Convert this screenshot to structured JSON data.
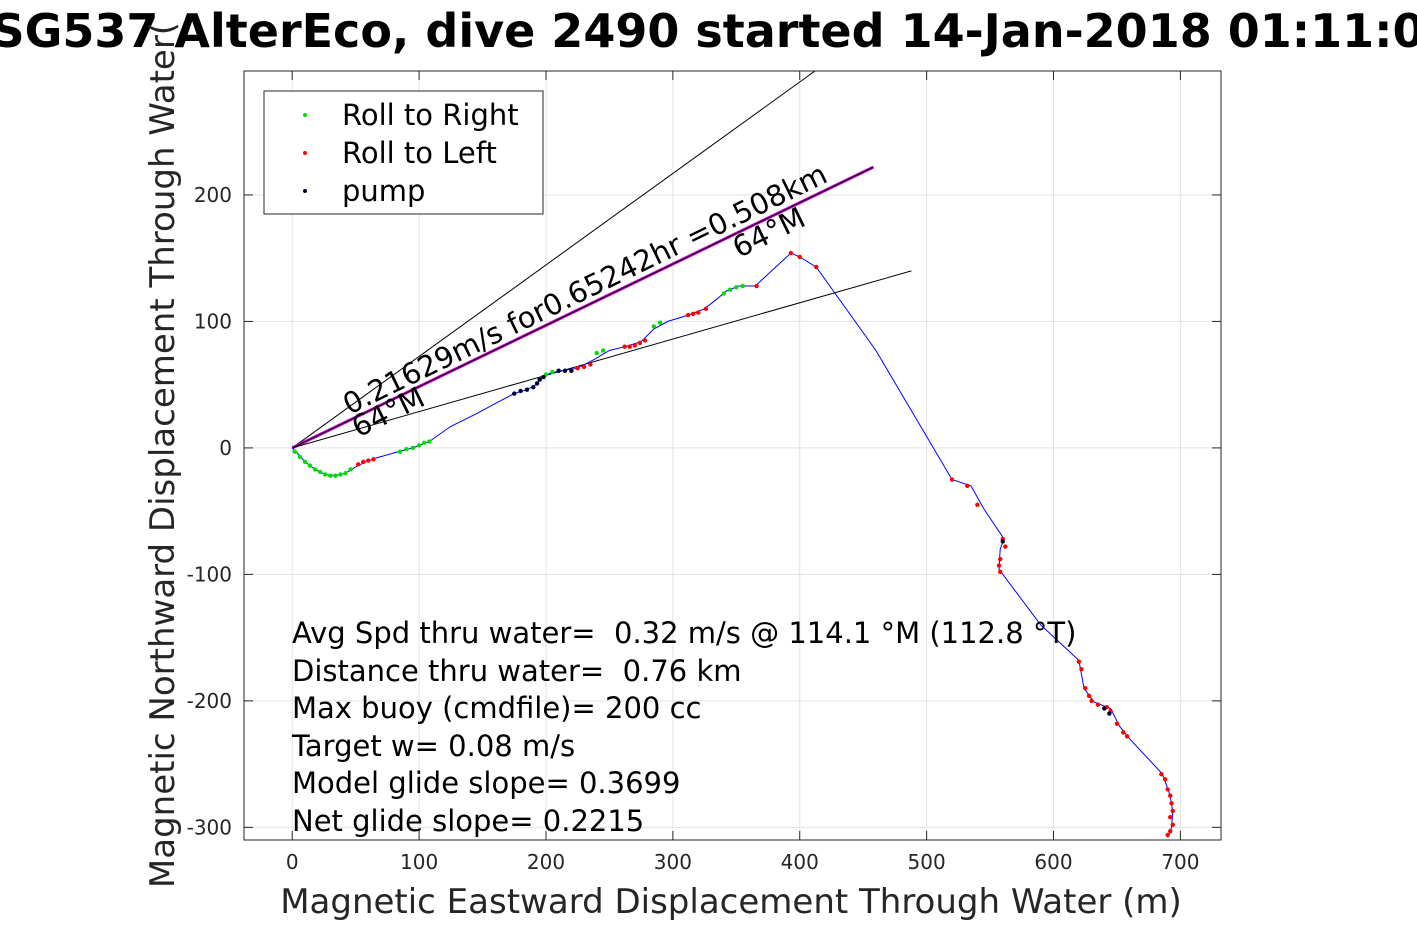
{
  "chart_data": {
    "type": "scatter",
    "title": "SG537 AlterEco, dive 2490 started 14-Jan-2018 01:11:0",
    "xlabel": "Magnetic Eastward Displacement Through Water (m)",
    "ylabel": "Magnetic Northward Displacement Through Water(",
    "xlim": [
      -38,
      732
    ],
    "ylim": [
      -310,
      298
    ],
    "x_ticks": [
      0,
      100,
      200,
      300,
      400,
      500,
      600,
      700
    ],
    "y_ticks": [
      -300,
      -200,
      -100,
      0,
      100,
      200
    ],
    "x_tick_labels": [
      "0",
      "100",
      "200",
      "300",
      "400",
      "500",
      "600",
      "700"
    ],
    "y_tick_labels": [
      "-300",
      "-200",
      "-100",
      "0",
      "100",
      "200"
    ],
    "grid": true,
    "legend_position": "top-left",
    "series": [
      {
        "name": "Roll to Right",
        "color": "#00dd00",
        "marker": "dot",
        "points": [
          [
            2,
            -3
          ],
          [
            6,
            -7
          ],
          [
            10,
            -11
          ],
          [
            14,
            -14
          ],
          [
            18,
            -17
          ],
          [
            22,
            -19
          ],
          [
            26,
            -21
          ],
          [
            30,
            -22
          ],
          [
            34,
            -22
          ],
          [
            38,
            -21
          ],
          [
            42,
            -20
          ],
          [
            46,
            -17
          ],
          [
            85,
            -3
          ],
          [
            90,
            -1
          ],
          [
            95,
            0
          ],
          [
            100,
            2
          ],
          [
            104,
            4
          ],
          [
            108,
            5
          ],
          [
            200,
            58
          ],
          [
            205,
            60
          ],
          [
            240,
            75
          ],
          [
            245,
            77
          ],
          [
            285,
            96
          ],
          [
            290,
            99
          ],
          [
            340,
            122
          ],
          [
            345,
            125
          ],
          [
            350,
            127
          ],
          [
            355,
            128
          ]
        ]
      },
      {
        "name": "Roll to Left",
        "color": "#ff0000",
        "marker": "dot",
        "points": [
          [
            52,
            -13
          ],
          [
            56,
            -11
          ],
          [
            60,
            -10
          ],
          [
            64,
            -9
          ],
          [
            225,
            63
          ],
          [
            230,
            64
          ],
          [
            235,
            66
          ],
          [
            262,
            80
          ],
          [
            266,
            80
          ],
          [
            270,
            81
          ],
          [
            274,
            83
          ],
          [
            278,
            85
          ],
          [
            312,
            105
          ],
          [
            316,
            106
          ],
          [
            320,
            107
          ],
          [
            326,
            110
          ],
          [
            366,
            128
          ],
          [
            393,
            154
          ],
          [
            400,
            151
          ],
          [
            413,
            143
          ],
          [
            520,
            -25
          ],
          [
            532,
            -30
          ],
          [
            540,
            -45
          ],
          [
            560,
            -72
          ],
          [
            562,
            -78
          ],
          [
            558,
            -88
          ],
          [
            557,
            -93
          ],
          [
            558,
            -98
          ],
          [
            620,
            -169
          ],
          [
            622,
            -175
          ],
          [
            625,
            -190
          ],
          [
            628,
            -196
          ],
          [
            630,
            -200
          ],
          [
            635,
            -203
          ],
          [
            642,
            -205
          ],
          [
            645,
            -208
          ],
          [
            650,
            -218
          ],
          [
            655,
            -225
          ],
          [
            658,
            -228
          ],
          [
            685,
            -258
          ],
          [
            688,
            -262
          ],
          [
            690,
            -270
          ],
          [
            692,
            -275
          ],
          [
            693,
            -281
          ],
          [
            694,
            -287
          ],
          [
            692,
            -292
          ],
          [
            694,
            -298
          ],
          [
            692,
            -303
          ],
          [
            690,
            -306
          ]
        ]
      },
      {
        "name": "pump",
        "color": "#000033",
        "marker": "dot",
        "points": [
          [
            175,
            43
          ],
          [
            180,
            45
          ],
          [
            185,
            46
          ],
          [
            190,
            48
          ],
          [
            193,
            51
          ],
          [
            195,
            54
          ],
          [
            198,
            56
          ],
          [
            210,
            61
          ],
          [
            215,
            61
          ],
          [
            220,
            61
          ],
          [
            560,
            -74
          ],
          [
            640,
            -206
          ],
          [
            644,
            -210
          ]
        ]
      }
    ],
    "track": {
      "name": "track",
      "color": "#0000ff",
      "points": [
        [
          0,
          0
        ],
        [
          4,
          -4
        ],
        [
          10,
          -11
        ],
        [
          18,
          -17
        ],
        [
          26,
          -21
        ],
        [
          34,
          -22
        ],
        [
          42,
          -20
        ],
        [
          50,
          -15
        ],
        [
          58,
          -11
        ],
        [
          66,
          -8
        ],
        [
          80,
          -4
        ],
        [
          95,
          0
        ],
        [
          108,
          5
        ],
        [
          125,
          17
        ],
        [
          145,
          27
        ],
        [
          160,
          35
        ],
        [
          175,
          43
        ],
        [
          185,
          46
        ],
        [
          192,
          50
        ],
        [
          197,
          55
        ],
        [
          203,
          59
        ],
        [
          212,
          61
        ],
        [
          225,
          63
        ],
        [
          238,
          70
        ],
        [
          250,
          77
        ],
        [
          262,
          80
        ],
        [
          275,
          84
        ],
        [
          285,
          94
        ],
        [
          296,
          100
        ],
        [
          312,
          105
        ],
        [
          325,
          110
        ],
        [
          335,
          118
        ],
        [
          342,
          124
        ],
        [
          352,
          128
        ],
        [
          365,
          128
        ],
        [
          380,
          142
        ],
        [
          393,
          154
        ],
        [
          400,
          151
        ],
        [
          413,
          143
        ],
        [
          460,
          77
        ],
        [
          520,
          -25
        ],
        [
          535,
          -30
        ],
        [
          545,
          -48
        ],
        [
          561,
          -72
        ],
        [
          558,
          -80
        ],
        [
          557,
          -96
        ],
        [
          590,
          -140
        ],
        [
          620,
          -168
        ],
        [
          624,
          -190
        ],
        [
          632,
          -201
        ],
        [
          645,
          -206
        ],
        [
          652,
          -220
        ],
        [
          660,
          -230
        ],
        [
          686,
          -258
        ],
        [
          692,
          -275
        ],
        [
          694,
          -288
        ],
        [
          693,
          -300
        ],
        [
          690,
          -308
        ]
      ]
    },
    "reference_lines": [
      {
        "name": "upper-line",
        "color": "#000000",
        "points": [
          [
            0,
            0
          ],
          [
            412,
            298
          ]
        ]
      },
      {
        "name": "magenta-line",
        "color": "#cc00cc",
        "points": [
          [
            0,
            0
          ],
          [
            458,
            222
          ]
        ]
      },
      {
        "name": "black-line-over-magenta",
        "color": "#000000",
        "points": [
          [
            0,
            0
          ],
          [
            458,
            222
          ]
        ]
      },
      {
        "name": "lower-line",
        "color": "#000000",
        "points": [
          [
            0,
            0
          ],
          [
            488,
            140
          ]
        ]
      }
    ],
    "annotations": [
      {
        "text": "0.21629m/s for0.65242hr =0.508km",
        "x": 45,
        "y": 26,
        "angle": 26
      },
      {
        "text": "64°M",
        "x": 52,
        "y": 8,
        "angle": 26
      },
      {
        "text": "64°M",
        "x": 352,
        "y": 150,
        "angle": 26
      }
    ],
    "stats": [
      "Avg Spd thru water=  0.32 m/s @ 114.1 °M (112.8 °T)",
      "Distance thru water=  0.76 km",
      "Max buoy (cmdfile)= 200 cc",
      "Target w= 0.08 m/s",
      "Model glide slope= 0.3699",
      "Net glide slope= 0.2215"
    ]
  }
}
